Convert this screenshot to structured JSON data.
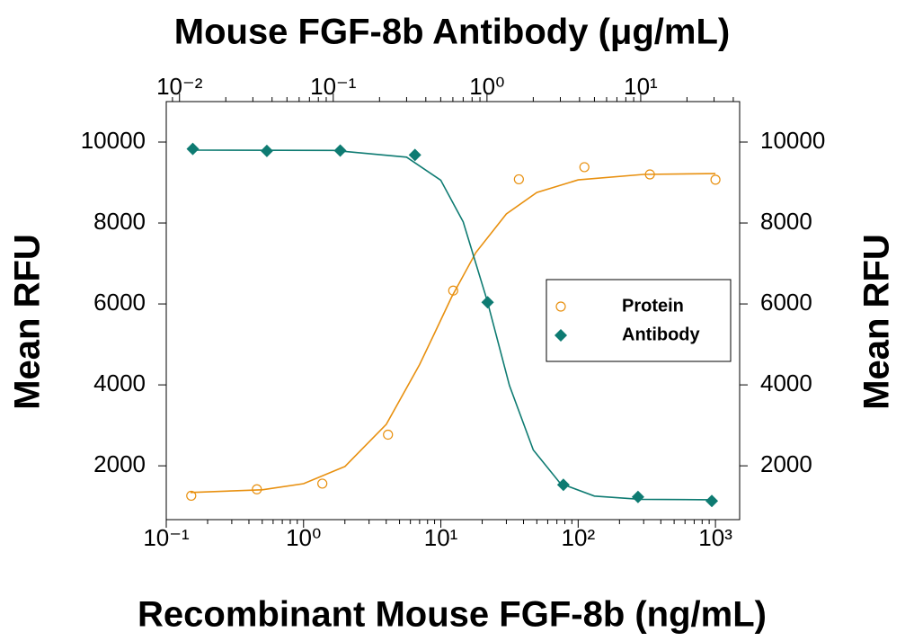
{
  "chart_data": {
    "type": "scatter",
    "x_label": "Recombinant Mouse FGF-8b (ng/mL)",
    "x2_label": "Mouse FGF-8b Antibody (μg/mL)",
    "y_label": "Mean RFU",
    "y2_label": "Mean RFU",
    "xscale": "log",
    "xlim": [
      0.1,
      1500
    ],
    "xticks": [
      {
        "value": 0.1,
        "label": "10⁻¹"
      },
      {
        "value": 1,
        "label": "10⁰"
      },
      {
        "value": 10,
        "label": "10¹"
      },
      {
        "value": 100,
        "label": "10²"
      },
      {
        "value": 1000,
        "label": "10³"
      }
    ],
    "x2lim": [
      0.0082,
      44
    ],
    "x2ticks": [
      {
        "value": 0.01,
        "label": "10⁻²"
      },
      {
        "value": 0.1,
        "label": "10⁻¹"
      },
      {
        "value": 1,
        "label": "10⁰"
      },
      {
        "value": 10,
        "label": "10¹"
      }
    ],
    "ylim": [
      670,
      11000
    ],
    "yticks": [
      2000,
      4000,
      6000,
      8000,
      10000
    ],
    "y2lim": [
      670,
      11000
    ],
    "y2ticks": [
      2000,
      4000,
      6000,
      8000,
      10000
    ],
    "legend": "right",
    "series": [
      {
        "name": "Protein",
        "color": "#e8900f",
        "marker": "circle",
        "xaxis": "x",
        "x": [
          0.152,
          0.457,
          1.37,
          4.12,
          12.3,
          37,
          111,
          333,
          1000
        ],
        "values": [
          1260,
          1420,
          1560,
          2770,
          6330,
          9080,
          9380,
          9200,
          9070
        ],
        "fit_x": [
          0.15,
          0.5,
          1,
          2,
          4,
          7,
          9,
          12,
          18,
          30,
          50,
          100,
          300,
          1000
        ],
        "fit_values": [
          1341,
          1407,
          1558,
          1983,
          3025,
          4502,
          5280,
          6173,
          7270,
          8223,
          8754,
          9066,
          9201,
          9220
        ]
      },
      {
        "name": "Antibody",
        "color": "#0e7b72",
        "marker": "diamond",
        "xaxis": "x2",
        "x": [
          0.0122,
          0.037,
          0.111,
          0.34,
          1.01,
          3.14,
          9.6,
          29
        ],
        "values": [
          9830,
          9780,
          9790,
          9680,
          6040,
          1530,
          1230,
          1130
        ],
        "fit_x": [
          0.012,
          0.1,
          0.3,
          0.5,
          0.7,
          1,
          1.4,
          2,
          3,
          5,
          10,
          29
        ],
        "fit_values": [
          9800,
          9793,
          9628,
          9058,
          8028,
          6094,
          3983,
          2392,
          1566,
          1251,
          1171,
          1160
        ]
      }
    ]
  }
}
